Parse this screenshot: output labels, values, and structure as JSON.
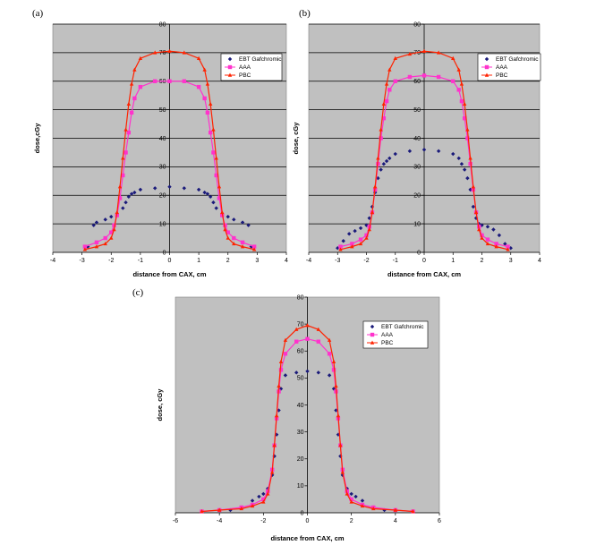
{
  "chart_data": [
    {
      "type": "scatter",
      "panel_label": "(a)",
      "xlabel": "distance from CAX, cm",
      "ylabel": "dose,cGy",
      "xlim": [
        -4,
        4
      ],
      "ylim": [
        0,
        80
      ],
      "xticks": [
        -4,
        -3,
        -2,
        -1,
        0,
        1,
        2,
        3,
        4
      ],
      "yticks": [
        0,
        10,
        20,
        30,
        40,
        50,
        60,
        70,
        80
      ],
      "grid": "horizontal",
      "legend_position": "top-right",
      "series": [
        {
          "name": "EBT Gafchromic",
          "color": "#1a1a7a",
          "marker": "diamond",
          "x": [
            -2.8,
            -2.6,
            -2.5,
            -2.2,
            -2.0,
            -1.8,
            -1.6,
            -1.5,
            -1.4,
            -1.3,
            -1.2,
            -1.0,
            -0.5,
            0,
            0.5,
            1.0,
            1.2,
            1.3,
            1.4,
            1.5,
            1.6,
            1.8,
            2.0,
            2.2,
            2.5,
            2.7,
            2.8
          ],
          "y": [
            2,
            9.5,
            10.5,
            11.5,
            12.5,
            13.5,
            15.5,
            17.5,
            19.5,
            20.5,
            21,
            22,
            22.5,
            23,
            22.5,
            22,
            21,
            20.5,
            19.5,
            17.5,
            15.5,
            13.5,
            12.5,
            11.5,
            10.5,
            9.5,
            2
          ]
        },
        {
          "name": "AAA",
          "color": "#ff33cc",
          "marker": "square",
          "x": [
            -2.9,
            -2.5,
            -2.2,
            -2.0,
            -1.9,
            -1.8,
            -1.7,
            -1.6,
            -1.5,
            -1.4,
            -1.3,
            -1.2,
            -1.0,
            -0.5,
            0,
            0.5,
            1.0,
            1.2,
            1.3,
            1.4,
            1.5,
            1.6,
            1.7,
            1.8,
            1.9,
            2.0,
            2.2,
            2.5,
            2.9
          ],
          "y": [
            2,
            3.5,
            5,
            7,
            9.5,
            13,
            19,
            27,
            35,
            42,
            49,
            54,
            58,
            60,
            60,
            60,
            58,
            54,
            49,
            42,
            35,
            27,
            19,
            13,
            9.5,
            7,
            5,
            3.5,
            2
          ]
        },
        {
          "name": "PBC",
          "color": "#ff2200",
          "marker": "triangle",
          "x": [
            -2.9,
            -2.5,
            -2.2,
            -2.0,
            -1.9,
            -1.8,
            -1.7,
            -1.6,
            -1.5,
            -1.4,
            -1.3,
            -1.2,
            -1.0,
            -0.5,
            0,
            0.5,
            1.0,
            1.2,
            1.3,
            1.4,
            1.5,
            1.6,
            1.7,
            1.8,
            1.9,
            2.0,
            2.2,
            2.5,
            2.9
          ],
          "y": [
            1,
            2,
            3,
            5,
            8,
            14,
            23,
            33,
            43,
            52,
            59,
            64,
            68,
            70,
            70.5,
            70,
            68,
            64,
            59,
            52,
            43,
            33,
            23,
            14,
            8,
            5,
            3,
            2,
            1
          ]
        }
      ],
      "legend_labels": [
        "EBT Gafchromic",
        "AAA",
        "PBC"
      ]
    },
    {
      "type": "scatter",
      "panel_label": "(b)",
      "xlabel": "distance from CAX, cm",
      "ylabel": "dose, cGy",
      "xlim": [
        -4,
        4
      ],
      "ylim": [
        0,
        80
      ],
      "xticks": [
        -4,
        -3,
        -2,
        -1,
        0,
        1,
        2,
        3,
        4
      ],
      "yticks": [
        0,
        10,
        20,
        30,
        40,
        50,
        60,
        70,
        80
      ],
      "grid": "horizontal",
      "legend_position": "top-right",
      "series": [
        {
          "name": "EBT Gafchromic",
          "color": "#1a1a7a",
          "marker": "diamond",
          "x": [
            -3.0,
            -2.8,
            -2.6,
            -2.4,
            -2.2,
            -2.0,
            -1.9,
            -1.8,
            -1.7,
            -1.6,
            -1.5,
            -1.4,
            -1.3,
            -1.2,
            -1.0,
            -0.5,
            0,
            0.5,
            1.0,
            1.2,
            1.3,
            1.4,
            1.5,
            1.6,
            1.7,
            1.8,
            1.9,
            2.0,
            2.2,
            2.4,
            2.6,
            2.8,
            3.0
          ],
          "y": [
            1.5,
            4,
            6.5,
            7.5,
            8.5,
            9.5,
            12,
            16,
            21,
            26,
            29,
            31,
            32,
            33,
            34.5,
            35.5,
            36,
            35.5,
            34.5,
            33,
            31,
            29,
            26,
            22,
            16,
            12,
            10,
            9.5,
            9,
            8,
            6,
            3,
            1.5
          ]
        },
        {
          "name": "AAA",
          "color": "#ff33cc",
          "marker": "square",
          "x": [
            -2.9,
            -2.5,
            -2.2,
            -2.0,
            -1.9,
            -1.8,
            -1.7,
            -1.6,
            -1.5,
            -1.4,
            -1.3,
            -1.2,
            -1.0,
            -0.5,
            0,
            0.5,
            1.0,
            1.2,
            1.3,
            1.4,
            1.5,
            1.6,
            1.7,
            1.8,
            1.9,
            2.0,
            2.2,
            2.5,
            2.9
          ],
          "y": [
            2,
            3,
            4.5,
            6,
            9,
            14,
            22,
            31,
            40,
            47,
            53,
            57,
            60,
            61.5,
            62,
            61.5,
            60,
            57,
            53,
            47,
            40,
            31,
            22,
            14,
            9,
            6,
            4.5,
            3,
            2
          ]
        },
        {
          "name": "PBC",
          "color": "#ff2200",
          "marker": "triangle",
          "x": [
            -2.9,
            -2.5,
            -2.2,
            -2.0,
            -1.9,
            -1.8,
            -1.7,
            -1.6,
            -1.5,
            -1.4,
            -1.3,
            -1.2,
            -1.0,
            -0.5,
            0,
            0.5,
            1.0,
            1.2,
            1.3,
            1.4,
            1.5,
            1.6,
            1.7,
            1.8,
            1.9,
            2.0,
            2.2,
            2.5,
            2.9
          ],
          "y": [
            1,
            2,
            3,
            5,
            8,
            14,
            23,
            33,
            43,
            52,
            59,
            64,
            68,
            69.5,
            70.5,
            70,
            68,
            64,
            59,
            52,
            43,
            33,
            23,
            14,
            8,
            5,
            3,
            2,
            1
          ]
        }
      ],
      "legend_labels": [
        "EBT Gafchromic",
        "AAA",
        "PBC"
      ]
    },
    {
      "type": "scatter",
      "panel_label": "(c)",
      "xlabel": "distance from CAX, cm",
      "ylabel": "dose, cGy",
      "xlim": [
        -6,
        6
      ],
      "ylim": [
        0,
        80
      ],
      "xticks": [
        -6,
        -4,
        -2,
        0,
        2,
        4,
        6
      ],
      "yticks": [
        0,
        10,
        20,
        30,
        40,
        50,
        60,
        70,
        80
      ],
      "grid": "none",
      "legend_position": "top-right",
      "series": [
        {
          "name": "EBT Gafchromic",
          "color": "#1a1a7a",
          "marker": "diamond",
          "x": [
            -3.5,
            -3.0,
            -2.5,
            -2.2,
            -2.0,
            -1.8,
            -1.6,
            -1.5,
            -1.4,
            -1.3,
            -1.2,
            -1.0,
            -0.5,
            0,
            0.5,
            1.0,
            1.2,
            1.3,
            1.4,
            1.5,
            1.6,
            1.8,
            2.0,
            2.2,
            2.5,
            3.0,
            3.5
          ],
          "y": [
            1,
            2,
            4.5,
            6,
            7,
            9,
            14,
            21,
            29,
            38,
            46,
            51,
            52,
            52.5,
            52,
            51,
            46,
            38,
            29,
            21,
            14,
            9,
            7,
            6,
            4.5,
            2,
            1
          ]
        },
        {
          "name": "AAA",
          "color": "#ff33cc",
          "marker": "square",
          "x": [
            -4.8,
            -4.0,
            -3.0,
            -2.5,
            -2.0,
            -1.8,
            -1.6,
            -1.5,
            -1.4,
            -1.3,
            -1.2,
            -1.0,
            -0.5,
            0,
            0.5,
            1.0,
            1.2,
            1.3,
            1.4,
            1.5,
            1.6,
            1.8,
            2.0,
            2.5,
            3.0,
            4.0,
            4.8
          ],
          "y": [
            0.5,
            1,
            2,
            3,
            5,
            8,
            16,
            25,
            35,
            45,
            53,
            59,
            63.5,
            64.5,
            63.5,
            59,
            53,
            45,
            35,
            25,
            16,
            8,
            5,
            3,
            2,
            1,
            0.5
          ]
        },
        {
          "name": "PBC",
          "color": "#ff2200",
          "marker": "triangle",
          "x": [
            -4.8,
            -4.0,
            -3.0,
            -2.5,
            -2.0,
            -1.8,
            -1.6,
            -1.5,
            -1.4,
            -1.3,
            -1.2,
            -1.0,
            -0.5,
            0,
            0.5,
            1.0,
            1.2,
            1.3,
            1.4,
            1.5,
            1.6,
            1.8,
            2.0,
            2.5,
            3.0,
            4.0,
            4.8
          ],
          "y": [
            0.5,
            1,
            1.5,
            2.5,
            4,
            7,
            15,
            25,
            36,
            47,
            56,
            64,
            68,
            69.5,
            68,
            64,
            56,
            47,
            36,
            25,
            15,
            7,
            4,
            2.5,
            1.5,
            1,
            0.5
          ]
        }
      ],
      "legend_labels": [
        "EBT Gafchromic",
        "AAA",
        "PBC"
      ]
    }
  ]
}
